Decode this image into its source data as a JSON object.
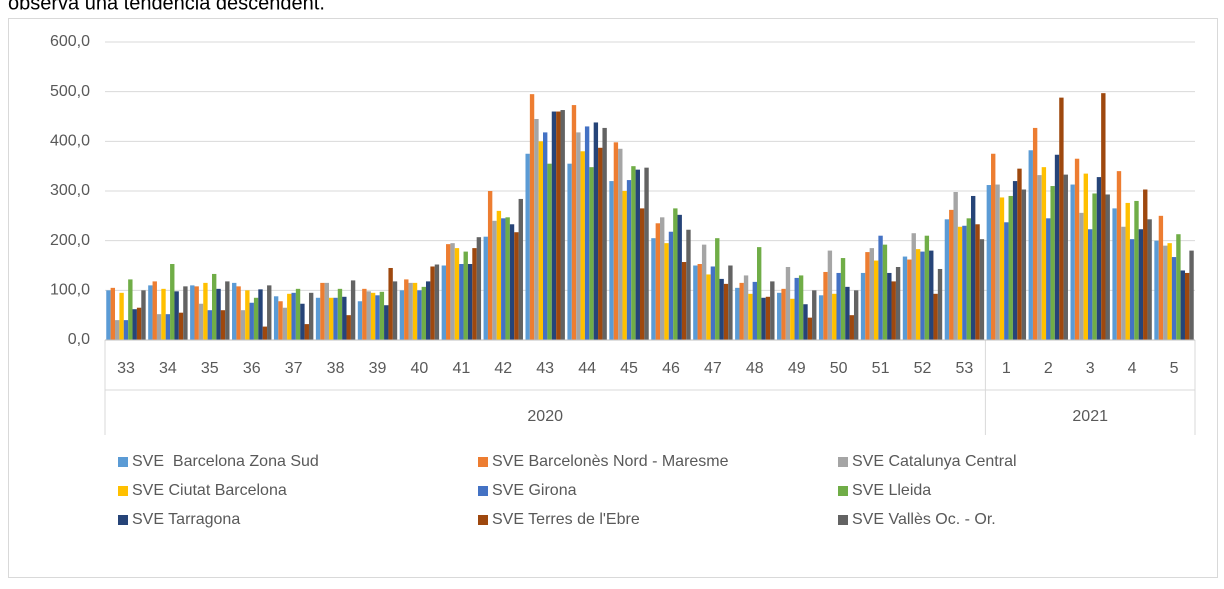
{
  "intro_text": "observa una tendència descendent.",
  "chart_data": {
    "type": "bar",
    "groups": [
      {
        "name": "2020",
        "categories": [
          "33",
          "34",
          "35",
          "36",
          "37",
          "38",
          "39",
          "40",
          "41",
          "42",
          "43",
          "44",
          "45",
          "46",
          "47",
          "48",
          "49",
          "50",
          "51",
          "52",
          "53"
        ]
      },
      {
        "name": "2021",
        "categories": [
          "1",
          "2",
          "3",
          "4",
          "5"
        ]
      }
    ],
    "ylim": [
      0,
      600
    ],
    "yticks": [
      {
        "value": 0,
        "label": "0,0"
      },
      {
        "value": 100,
        "label": "100,0"
      },
      {
        "value": 200,
        "label": "200,0"
      },
      {
        "value": 300,
        "label": "300,0"
      },
      {
        "value": 400,
        "label": "400,0"
      },
      {
        "value": 500,
        "label": "500,0"
      },
      {
        "value": 600,
        "label": "600,0"
      }
    ],
    "grid": true,
    "legend": "bottom",
    "series": [
      {
        "name": "SVE  Barcelona Zona Sud",
        "color": "#5b9bd5",
        "values": [
          100,
          110,
          110,
          115,
          88,
          85,
          78,
          100,
          150,
          208,
          375,
          355,
          320,
          205,
          150,
          105,
          95,
          90,
          135,
          168,
          243,
          312,
          382,
          313,
          265,
          200
        ]
      },
      {
        "name": "SVE Barcelonès Nord - Maresme",
        "color": "#ed7d31",
        "values": [
          105,
          118,
          108,
          108,
          78,
          115,
          103,
          122,
          193,
          300,
          495,
          473,
          398,
          235,
          153,
          115,
          103,
          137,
          177,
          162,
          262,
          375,
          427,
          365,
          340,
          250
        ]
      },
      {
        "name": "SVE Catalunya Central",
        "color": "#a5a5a5",
        "values": [
          40,
          52,
          73,
          60,
          65,
          115,
          98,
          115,
          195,
          240,
          445,
          418,
          385,
          247,
          192,
          130,
          147,
          180,
          185,
          215,
          298,
          313,
          332,
          256,
          228,
          190
        ]
      },
      {
        "name": "SVE Ciutat Barcelona",
        "color": "#ffc000",
        "values": [
          95,
          103,
          115,
          100,
          93,
          85,
          95,
          115,
          185,
          260,
          400,
          380,
          300,
          195,
          132,
          93,
          83,
          93,
          160,
          183,
          228,
          287,
          348,
          335,
          276,
          195
        ]
      },
      {
        "name": "SVE Girona",
        "color": "#4472c4",
        "values": [
          40,
          52,
          60,
          75,
          95,
          85,
          90,
          100,
          153,
          245,
          418,
          430,
          322,
          218,
          148,
          117,
          125,
          135,
          210,
          178,
          230,
          237,
          245,
          223,
          203,
          167
        ]
      },
      {
        "name": "SVE Lleida",
        "color": "#70ad47",
        "values": [
          122,
          153,
          133,
          85,
          103,
          103,
          97,
          107,
          178,
          247,
          355,
          348,
          350,
          265,
          205,
          187,
          130,
          165,
          192,
          210,
          245,
          290,
          310,
          295,
          280,
          213
        ]
      },
      {
        "name": "SVE Tarragona",
        "color": "#264478",
        "values": [
          62,
          98,
          103,
          102,
          73,
          87,
          70,
          118,
          153,
          233,
          460,
          438,
          343,
          252,
          123,
          85,
          72,
          107,
          135,
          180,
          290,
          320,
          373,
          328,
          223,
          140
        ]
      },
      {
        "name": "SVE Terres de l'Ebre",
        "color": "#9e480e",
        "values": [
          65,
          55,
          60,
          27,
          32,
          50,
          145,
          148,
          185,
          217,
          460,
          387,
          265,
          157,
          113,
          87,
          45,
          50,
          118,
          93,
          233,
          345,
          488,
          497,
          303,
          135
        ]
      },
      {
        "name": "SVE Vallès Oc. - Or.",
        "color": "#636363",
        "values": [
          100,
          108,
          118,
          110,
          95,
          120,
          118,
          152,
          207,
          284,
          463,
          427,
          347,
          222,
          150,
          118,
          100,
          100,
          147,
          143,
          203,
          303,
          333,
          293,
          243,
          180
        ]
      }
    ]
  }
}
